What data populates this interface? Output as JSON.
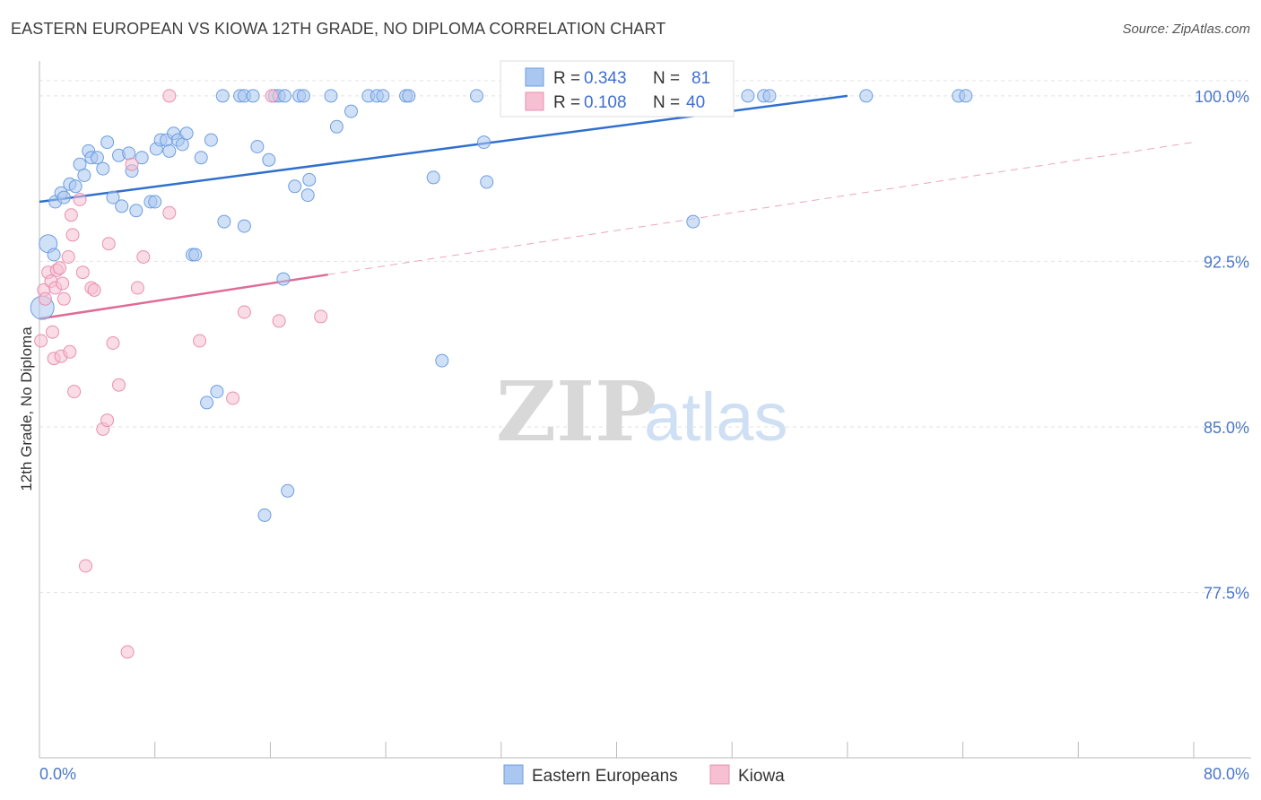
{
  "header": {
    "title": "EASTERN EUROPEAN VS KIOWA 12TH GRADE, NO DIPLOMA CORRELATION CHART",
    "source": "Source: ZipAtlas.com"
  },
  "watermark": {
    "zip": "ZIP",
    "atlas": "atlas"
  },
  "colors": {
    "blue_fill": "#a9c7f0",
    "blue_stroke": "#6d9ee0",
    "blue_line": "#2f6fcf",
    "pink_fill": "#f6bfd2",
    "pink_stroke": "#e98fb0",
    "pink_line": "#e06b96",
    "grid": "#e2e2e2",
    "tick_text": "#4a77c9"
  },
  "legend": {
    "rows": [
      {
        "r_label": "R = ",
        "r_value": "0.343",
        "n_label": "N = ",
        "n_value": "81"
      },
      {
        "r_label": "R = ",
        "r_value": "0.108",
        "n_label": "N = ",
        "n_value": "40"
      }
    ]
  },
  "bottom_legend": {
    "series1": "Eastern Europeans",
    "series2": "Kiowa"
  },
  "chart_data": {
    "type": "scatter",
    "title": "EASTERN EUROPEAN VS KIOWA 12TH GRADE, NO DIPLOMA CORRELATION CHART",
    "xlabel": "",
    "ylabel": "12th Grade, No Diploma",
    "xlim": [
      0,
      80
    ],
    "ylim": [
      70,
      101.5
    ],
    "x_tick_labels": {
      "min": "0.0%",
      "max": "80.0%"
    },
    "y_ticks": [
      {
        "value": 100,
        "label": "100.0%"
      },
      {
        "value": 92.5,
        "label": "92.5%"
      },
      {
        "value": 85,
        "label": "85.0%"
      },
      {
        "value": 77.5,
        "label": "77.5%"
      }
    ],
    "grid": true,
    "legend_position": "top-center",
    "series": [
      {
        "name": "Eastern Europeans",
        "R": 0.343,
        "N": 81,
        "trend": {
          "x0": 0,
          "y0": 95.2,
          "x1": 56,
          "y1": 100.0,
          "extended": false
        },
        "points": [
          [
            0.2,
            90.4,
            26
          ],
          [
            0.6,
            93.3,
            20
          ],
          [
            1.0,
            92.8,
            14
          ],
          [
            1.1,
            95.2,
            14
          ],
          [
            1.5,
            95.6,
            14
          ],
          [
            1.7,
            95.4,
            14
          ],
          [
            2.1,
            96.0,
            14
          ],
          [
            2.5,
            95.9,
            14
          ],
          [
            2.8,
            96.9,
            14
          ],
          [
            3.1,
            96.4,
            14
          ],
          [
            3.4,
            97.5,
            14
          ],
          [
            3.6,
            97.2,
            14
          ],
          [
            4.0,
            97.2,
            14
          ],
          [
            4.4,
            96.7,
            14
          ],
          [
            4.7,
            97.9,
            14
          ],
          [
            5.1,
            95.4,
            14
          ],
          [
            5.5,
            97.3,
            14
          ],
          [
            5.7,
            95.0,
            14
          ],
          [
            6.2,
            97.4,
            14
          ],
          [
            6.4,
            96.6,
            14
          ],
          [
            6.7,
            94.8,
            14
          ],
          [
            7.1,
            97.2,
            14
          ],
          [
            7.7,
            95.2,
            14
          ],
          [
            8.0,
            95.2,
            14
          ],
          [
            8.1,
            97.6,
            14
          ],
          [
            8.4,
            98.0,
            14
          ],
          [
            8.8,
            98.0,
            14
          ],
          [
            9.0,
            97.5,
            14
          ],
          [
            9.3,
            98.3,
            14
          ],
          [
            9.6,
            98.0,
            14
          ],
          [
            9.9,
            97.8,
            14
          ],
          [
            10.2,
            98.3,
            14
          ],
          [
            10.6,
            92.8,
            14
          ],
          [
            10.8,
            92.8,
            14
          ],
          [
            11.2,
            97.2,
            14
          ],
          [
            11.6,
            86.1,
            14
          ],
          [
            11.9,
            98.0,
            14
          ],
          [
            12.3,
            86.6,
            14
          ],
          [
            12.7,
            100.0,
            14
          ],
          [
            12.8,
            94.3,
            14
          ],
          [
            13.9,
            100.0,
            14
          ],
          [
            14.2,
            94.1,
            14
          ],
          [
            14.2,
            100.0,
            14
          ],
          [
            14.8,
            100.0,
            14
          ],
          [
            15.1,
            97.7,
            14
          ],
          [
            15.6,
            81.0,
            14
          ],
          [
            15.9,
            97.1,
            14
          ],
          [
            16.3,
            100.0,
            14
          ],
          [
            16.6,
            100.0,
            14
          ],
          [
            16.9,
            91.7,
            14
          ],
          [
            17.0,
            100.0,
            14
          ],
          [
            17.2,
            82.1,
            14
          ],
          [
            17.7,
            95.9,
            14
          ],
          [
            18.0,
            100.0,
            14
          ],
          [
            18.3,
            100.0,
            14
          ],
          [
            18.6,
            95.5,
            14
          ],
          [
            18.7,
            96.2,
            14
          ],
          [
            20.2,
            100.0,
            14
          ],
          [
            20.6,
            98.6,
            14
          ],
          [
            21.6,
            99.3,
            14
          ],
          [
            22.8,
            100.0,
            14
          ],
          [
            23.4,
            100.0,
            14
          ],
          [
            23.8,
            100.0,
            14
          ],
          [
            25.4,
            100.0,
            14
          ],
          [
            25.6,
            100.0,
            14
          ],
          [
            27.3,
            96.3,
            14
          ],
          [
            27.9,
            88.0,
            14
          ],
          [
            30.3,
            100.0,
            14
          ],
          [
            31.0,
            96.1,
            14
          ],
          [
            30.8,
            97.9,
            14
          ],
          [
            34.8,
            100.0,
            14
          ],
          [
            37.4,
            100.0,
            14
          ],
          [
            45.3,
            94.3,
            14
          ],
          [
            47.2,
            100.0,
            14
          ],
          [
            47.6,
            100.0,
            14
          ],
          [
            49.1,
            100.0,
            14
          ],
          [
            50.2,
            100.0,
            14
          ],
          [
            50.6,
            100.0,
            14
          ],
          [
            57.3,
            100.0,
            14
          ],
          [
            63.7,
            100.0,
            14
          ],
          [
            64.2,
            100.0,
            14
          ]
        ]
      },
      {
        "name": "Kiowa",
        "R": 0.108,
        "N": 40,
        "trend": {
          "x0": 0,
          "y0": 89.9,
          "x1": 20,
          "y1": 91.9,
          "extended": true,
          "x_end": 80,
          "y_end": 97.9
        },
        "points": [
          [
            0.1,
            88.9,
            14
          ],
          [
            0.3,
            91.2,
            14
          ],
          [
            0.4,
            90.8,
            14
          ],
          [
            0.6,
            92.0,
            14
          ],
          [
            0.8,
            91.6,
            14
          ],
          [
            0.9,
            89.3,
            14
          ],
          [
            1.0,
            88.1,
            14
          ],
          [
            1.1,
            91.3,
            14
          ],
          [
            1.2,
            92.1,
            14
          ],
          [
            1.4,
            92.2,
            14
          ],
          [
            1.5,
            88.2,
            14
          ],
          [
            1.6,
            91.5,
            14
          ],
          [
            1.7,
            90.8,
            14
          ],
          [
            2.0,
            92.7,
            14
          ],
          [
            2.1,
            88.4,
            14
          ],
          [
            2.2,
            94.6,
            14
          ],
          [
            2.3,
            93.7,
            14
          ],
          [
            2.4,
            86.6,
            14
          ],
          [
            2.8,
            95.3,
            14
          ],
          [
            3.0,
            92.0,
            14
          ],
          [
            3.2,
            78.7,
            14
          ],
          [
            3.6,
            91.3,
            14
          ],
          [
            3.8,
            91.2,
            14
          ],
          [
            4.4,
            84.9,
            14
          ],
          [
            4.7,
            85.3,
            14
          ],
          [
            4.8,
            93.3,
            14
          ],
          [
            5.1,
            88.8,
            14
          ],
          [
            5.5,
            86.9,
            14
          ],
          [
            6.1,
            74.8,
            14
          ],
          [
            6.4,
            96.9,
            14
          ],
          [
            6.8,
            91.3,
            14
          ],
          [
            7.2,
            92.7,
            14
          ],
          [
            9.0,
            94.7,
            14
          ],
          [
            9.0,
            100.0,
            14
          ],
          [
            11.1,
            88.9,
            14
          ],
          [
            13.4,
            86.3,
            14
          ],
          [
            14.2,
            90.2,
            14
          ],
          [
            16.1,
            100.0,
            14
          ],
          [
            16.6,
            89.8,
            14
          ],
          [
            19.5,
            90.0,
            14
          ]
        ]
      }
    ]
  }
}
